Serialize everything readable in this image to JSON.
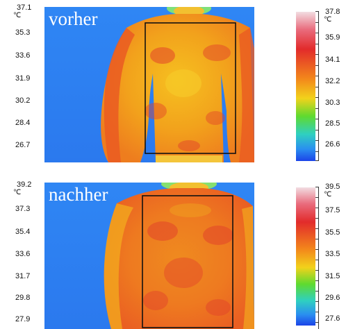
{
  "before": {
    "caption": "vorher",
    "unit": "℃",
    "left_scale": [
      "37.1",
      "35.3",
      "33.6",
      "31.9",
      "30.2",
      "28.4",
      "26.7"
    ],
    "right_scale": [
      "37.8",
      "35.9",
      "34.1",
      "32.2",
      "30.3",
      "28.5",
      "26.6"
    ]
  },
  "after": {
    "caption": "nachher",
    "unit": "℃",
    "left_scale": [
      "39.2",
      "37.3",
      "35.4",
      "33.6",
      "31.7",
      "29.8",
      "27.9"
    ],
    "right_scale": [
      "39.5",
      "37.5",
      "35.5",
      "33.5",
      "31.5",
      "29.6",
      "27.6"
    ]
  },
  "colors": {
    "background_blue": "#2b7df2",
    "body_orange": "#f2a11d",
    "hot_red": "#e2432a",
    "frame": "#111111"
  }
}
